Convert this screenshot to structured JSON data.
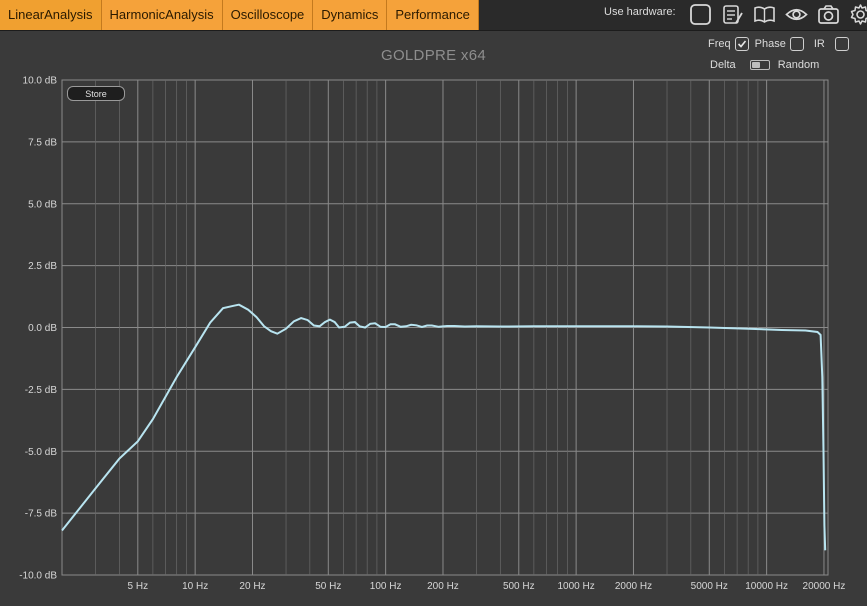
{
  "tabs": [
    {
      "label": "LinearAnalysis"
    },
    {
      "label": "HarmonicAnalysis"
    },
    {
      "label": "Oscilloscope"
    },
    {
      "label": "Dynamics"
    },
    {
      "label": "Performance"
    }
  ],
  "hardware": {
    "label": "Use hardware:",
    "icons": [
      "checkbox-square-icon",
      "notes-icon",
      "book-icon",
      "eye-icon",
      "camera-icon",
      "gear-icon"
    ]
  },
  "plot_title": "GOLDPRE x64",
  "options": {
    "freq_label": "Freq",
    "freq_checked": true,
    "phase_label": "Phase",
    "phase_checked": false,
    "ir_label": "IR",
    "ir_checked": false,
    "delta_label": "Delta",
    "random_label": "Random"
  },
  "store_label": "Store",
  "colors": {
    "accent": "#f5a23a",
    "curve": "#b8e4f0",
    "grid": "#8a8a8a"
  },
  "chart_data": {
    "type": "line",
    "x_scale": "log",
    "xlim": [
      2,
      21000
    ],
    "ylim": [
      -10,
      10
    ],
    "x_ticks": [
      {
        "value": 5,
        "label": "5 Hz"
      },
      {
        "value": 10,
        "label": "10 Hz"
      },
      {
        "value": 20,
        "label": "20 Hz"
      },
      {
        "value": 50,
        "label": "50 Hz"
      },
      {
        "value": 100,
        "label": "100 Hz"
      },
      {
        "value": 200,
        "label": "200 Hz"
      },
      {
        "value": 500,
        "label": "500 Hz"
      },
      {
        "value": 1000,
        "label": "1000 Hz"
      },
      {
        "value": 2000,
        "label": "2000 Hz"
      },
      {
        "value": 5000,
        "label": "5000 Hz"
      },
      {
        "value": 10000,
        "label": "10000 Hz"
      },
      {
        "value": 20000,
        "label": "20000 Hz"
      }
    ],
    "x_minor_ticks": [
      3,
      4,
      6,
      7,
      8,
      9,
      30,
      40,
      60,
      70,
      80,
      90,
      300,
      400,
      600,
      700,
      800,
      900,
      3000,
      4000,
      6000,
      7000,
      8000,
      9000
    ],
    "y_ticks": [
      {
        "value": 10,
        "label": "10.0 dB"
      },
      {
        "value": 7.5,
        "label": "7.5 dB"
      },
      {
        "value": 5,
        "label": "5.0 dB"
      },
      {
        "value": 2.5,
        "label": "2.5 dB"
      },
      {
        "value": 0,
        "label": "0.0 dB"
      },
      {
        "value": -2.5,
        "label": "-2.5 dB"
      },
      {
        "value": -5,
        "label": "-5.0 dB"
      },
      {
        "value": -7.5,
        "label": "-7.5 dB"
      },
      {
        "value": -10,
        "label": "-10.0 dB"
      }
    ],
    "grid": true,
    "series": [
      {
        "points": [
          [
            2,
            -8.2
          ],
          [
            3,
            -6.5
          ],
          [
            4,
            -5.3
          ],
          [
            5,
            -4.6
          ],
          [
            6,
            -3.7
          ],
          [
            8,
            -2.0
          ],
          [
            10,
            -0.8
          ],
          [
            12,
            0.2
          ],
          [
            14,
            0.78
          ],
          [
            16,
            0.88
          ],
          [
            17,
            0.92
          ],
          [
            19,
            0.72
          ],
          [
            21,
            0.42
          ],
          [
            23,
            0.05
          ],
          [
            25,
            -0.15
          ],
          [
            27,
            -0.25
          ],
          [
            30,
            -0.05
          ],
          [
            33,
            0.25
          ],
          [
            36,
            0.38
          ],
          [
            39,
            0.3
          ],
          [
            42,
            0.08
          ],
          [
            45,
            0.05
          ],
          [
            48,
            0.22
          ],
          [
            51,
            0.32
          ],
          [
            54,
            0.22
          ],
          [
            57,
            0.0
          ],
          [
            61,
            0.03
          ],
          [
            65,
            0.2
          ],
          [
            69,
            0.22
          ],
          [
            73,
            0.05
          ],
          [
            78,
            0.0
          ],
          [
            83,
            0.15
          ],
          [
            88,
            0.17
          ],
          [
            94,
            0.03
          ],
          [
            100,
            0.02
          ],
          [
            106,
            0.13
          ],
          [
            112,
            0.13
          ],
          [
            120,
            0.03
          ],
          [
            128,
            0.05
          ],
          [
            136,
            0.11
          ],
          [
            145,
            0.09
          ],
          [
            155,
            0.02
          ],
          [
            165,
            0.08
          ],
          [
            175,
            0.08
          ],
          [
            190,
            0.03
          ],
          [
            210,
            0.06
          ],
          [
            230,
            0.06
          ],
          [
            260,
            0.04
          ],
          [
            300,
            0.05
          ],
          [
            400,
            0.04
          ],
          [
            600,
            0.05
          ],
          [
            1000,
            0.05
          ],
          [
            2000,
            0.05
          ],
          [
            3000,
            0.04
          ],
          [
            5000,
            0.0
          ],
          [
            8000,
            -0.05
          ],
          [
            12000,
            -0.1
          ],
          [
            16000,
            -0.12
          ],
          [
            18500,
            -0.18
          ],
          [
            19200,
            -0.3
          ],
          [
            19600,
            -2.0
          ],
          [
            19900,
            -5.0
          ],
          [
            20100,
            -8.0
          ],
          [
            20300,
            -9.0
          ]
        ]
      }
    ]
  }
}
